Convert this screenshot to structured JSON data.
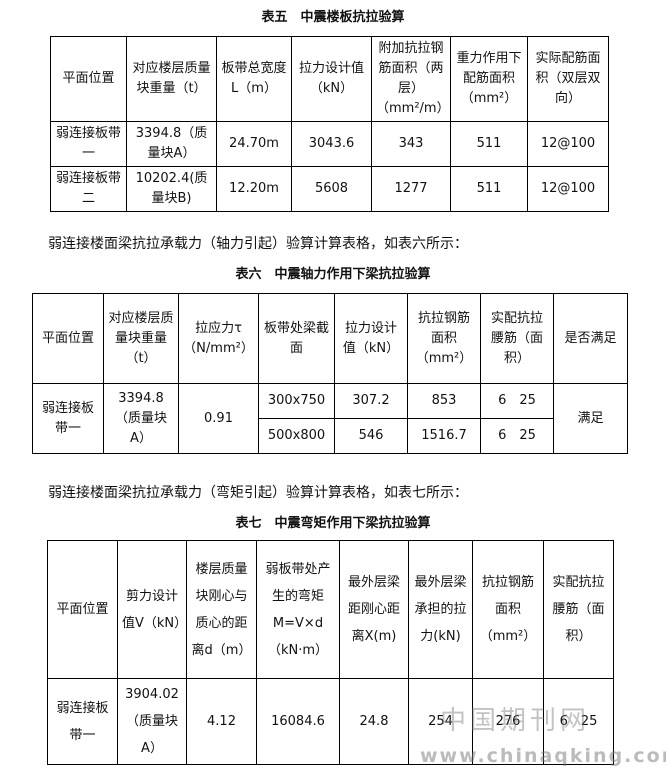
{
  "table5": {
    "caption": "表五　中震楼板抗拉验算",
    "header": [
      "平面位置",
      "对应楼层质量块重量（t）",
      "板带总宽度L（m）",
      "拉力设计值（kN）",
      "附加抗拉钢筋面积（两层）（mm²/m）",
      "重力作用下配筋面积（mm²）",
      "实际配筋面积（双层双向）"
    ],
    "rows": [
      [
        "弱连接板带一",
        "3394.8（质量块A）",
        "24.70m",
        "3043.6",
        "343",
        "511",
        "12@100"
      ],
      [
        "弱连接板带二",
        "10202.4(质量块B)",
        "12.20m",
        "5608",
        "1277",
        "511",
        "12@100"
      ]
    ]
  },
  "paragraph1": "弱连接楼面梁抗拉承载力（轴力引起）验算计算表格，如表六所示：",
  "table6": {
    "caption": "表六　中震轴力作用下梁抗拉验算",
    "header": [
      "平面位置",
      "对应楼层质量块重量（t）",
      "拉应力τ（N/mm²）",
      "板带处梁截面",
      "拉力设计值（kN）",
      "抗拉钢筋面积（mm²）",
      "实配抗拉腰筋（面积）",
      "是否满足"
    ],
    "rows": [
      [
        "弱连接板带一",
        "3394.8（质量块A）",
        "0.91",
        "300x750",
        "307.2",
        "853",
        "6　25",
        "满足"
      ],
      [
        "500x800",
        "546",
        "1516.7",
        "6　25"
      ]
    ]
  },
  "paragraph2": "弱连接楼面梁抗拉承载力（弯矩引起）验算计算表格，如表七所示：",
  "table7": {
    "caption": "表七　中震弯矩作用下梁抗拉验算",
    "header": [
      "平面位置",
      "剪力设计值V（kN）",
      "楼层质量块刚心与质心的距离d（m）",
      "弱板带处产生的弯矩M=V×d（kN·m）",
      "最外层梁距刚心距离X(m)",
      "最外层梁承担的拉力(kN)",
      "抗拉钢筋面积（mm²）",
      "实配抗拉腰筋（面积）"
    ],
    "rows": [
      [
        "弱连接板带一",
        "3904.02（质量块A）",
        "4.12",
        "16084.6",
        "24.8",
        "254",
        "276",
        "6　25"
      ]
    ]
  },
  "watermark": {
    "cn": "中国期刊网",
    "url": "www.chinaqking.com"
  }
}
